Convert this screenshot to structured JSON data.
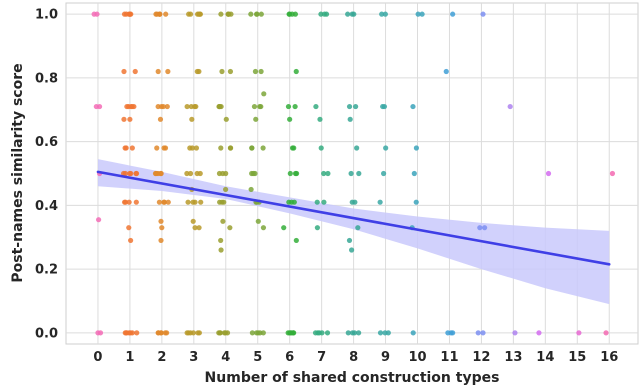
{
  "chart_data": {
    "type": "scatter",
    "title": "",
    "xlabel": "Number of shared construction types",
    "ylabel": "Post-names similarity score",
    "xlim": [
      -1,
      16.9
    ],
    "ylim": [
      -0.035,
      1.035
    ],
    "x_ticks": [
      "0",
      "1",
      "2",
      "3",
      "4",
      "5",
      "6",
      "7",
      "8",
      "9",
      "10",
      "11",
      "12",
      "13",
      "14",
      "15",
      "16"
    ],
    "y_ticks": [
      "0.0",
      "0.2",
      "0.4",
      "0.6",
      "0.8",
      "1.0"
    ],
    "grid": true,
    "legend": "none",
    "palette": [
      "#f36cb6",
      "#f07532",
      "#e1882b",
      "#b99a2a",
      "#999f2f",
      "#7ca63a",
      "#34ae3a",
      "#35ac80",
      "#37a795",
      "#39a8a5",
      "#3ba3bb",
      "#3f9fd6",
      "#7c8ff1",
      "#ae82f0",
      "#d46cf0",
      "#e868d2",
      "#f36ab2"
    ],
    "regression": {
      "color": "#3f3fe6",
      "band_color": "#c9c9fb",
      "line": [
        [
          0,
          0.505
        ],
        [
          16,
          0.215
        ]
      ],
      "band_upper": [
        [
          0,
          0.545
        ],
        [
          2,
          0.505
        ],
        [
          4,
          0.46
        ],
        [
          6,
          0.425
        ],
        [
          8,
          0.39
        ],
        [
          10,
          0.365
        ],
        [
          12,
          0.345
        ],
        [
          14,
          0.33
        ],
        [
          16,
          0.32
        ]
      ],
      "band_lower": [
        [
          0,
          0.46
        ],
        [
          2,
          0.445
        ],
        [
          4,
          0.42
        ],
        [
          6,
          0.375
        ],
        [
          8,
          0.325
        ],
        [
          10,
          0.265
        ],
        [
          12,
          0.2
        ],
        [
          14,
          0.14
        ],
        [
          16,
          0.09
        ]
      ]
    },
    "series": [
      {
        "x": 0,
        "points": [
          [
            -0.12,
            1.0
          ],
          [
            -0.03,
            1.0
          ],
          [
            0.05,
            0.71
          ],
          [
            -0.05,
            0.71
          ],
          [
            0.05,
            0.5
          ],
          [
            0.02,
            0.355
          ],
          [
            0.0,
            0.0
          ],
          [
            0.08,
            0.0
          ]
        ]
      },
      {
        "x": 1,
        "spread": 0.22,
        "ys": [
          1.0,
          1.0,
          1.0,
          1.0,
          1.0,
          1.0,
          0.82,
          0.82,
          0.71,
          0.71,
          0.71,
          0.71,
          0.71,
          0.67,
          0.67,
          0.58,
          0.58,
          0.58,
          0.5,
          0.5,
          0.5,
          0.5,
          0.5,
          0.5,
          0.41,
          0.41,
          0.41,
          0.41,
          0.33,
          0.29,
          0.0,
          0.0,
          0.0,
          0.0,
          0.0,
          0.0,
          0.0
        ]
      },
      {
        "x": 2,
        "spread": 0.22,
        "ys": [
          1.0,
          1.0,
          1.0,
          1.0,
          1.0,
          1.0,
          0.82,
          0.82,
          0.71,
          0.71,
          0.71,
          0.71,
          0.67,
          0.58,
          0.58,
          0.58,
          0.5,
          0.5,
          0.5,
          0.5,
          0.5,
          0.41,
          0.41,
          0.41,
          0.41,
          0.35,
          0.33,
          0.29,
          0.0,
          0.0,
          0.0,
          0.0,
          0.0,
          0.0
        ]
      },
      {
        "x": 3,
        "spread": 0.22,
        "ys": [
          1.0,
          1.0,
          1.0,
          1.0,
          1.0,
          1.0,
          0.82,
          0.82,
          0.71,
          0.71,
          0.71,
          0.71,
          0.67,
          0.58,
          0.58,
          0.58,
          0.5,
          0.5,
          0.5,
          0.5,
          0.45,
          0.41,
          0.41,
          0.41,
          0.41,
          0.35,
          0.33,
          0.33,
          0.0,
          0.0,
          0.0,
          0.0,
          0.0,
          0.0
        ]
      },
      {
        "x": 4,
        "spread": 0.22,
        "ys": [
          1.0,
          1.0,
          1.0,
          1.0,
          1.0,
          0.82,
          0.82,
          0.71,
          0.71,
          0.71,
          0.71,
          0.67,
          0.58,
          0.58,
          0.58,
          0.5,
          0.5,
          0.5,
          0.45,
          0.41,
          0.41,
          0.41,
          0.35,
          0.33,
          0.29,
          0.26,
          0.0,
          0.0,
          0.0,
          0.0,
          0.0,
          0.0
        ]
      },
      {
        "x": 5,
        "spread": 0.22,
        "ys": [
          1.0,
          1.0,
          1.0,
          1.0,
          0.82,
          0.82,
          0.75,
          0.71,
          0.71,
          0.71,
          0.67,
          0.58,
          0.58,
          0.58,
          0.5,
          0.5,
          0.5,
          0.45,
          0.41,
          0.41,
          0.41,
          0.35,
          0.33,
          0.0,
          0.0,
          0.0,
          0.0,
          0.0
        ]
      },
      {
        "x": 6,
        "spread": 0.22,
        "ys": [
          1.0,
          1.0,
          1.0,
          1.0,
          0.82,
          0.71,
          0.71,
          0.67,
          0.58,
          0.58,
          0.5,
          0.5,
          0.5,
          0.41,
          0.41,
          0.41,
          0.33,
          0.29,
          0.0,
          0.0,
          0.0,
          0.0,
          0.0,
          0.0
        ]
      },
      {
        "x": 7,
        "spread": 0.2,
        "ys": [
          1.0,
          1.0,
          1.0,
          0.71,
          0.67,
          0.58,
          0.5,
          0.5,
          0.41,
          0.41,
          0.33,
          0.0,
          0.0,
          0.0,
          0.0,
          0.0
        ]
      },
      {
        "x": 8,
        "spread": 0.2,
        "ys": [
          1.0,
          1.0,
          1.0,
          0.71,
          0.71,
          0.67,
          0.58,
          0.5,
          0.5,
          0.41,
          0.41,
          0.33,
          0.29,
          0.26,
          0.0,
          0.0,
          0.0,
          0.0
        ]
      },
      {
        "x": 9,
        "spread": 0.18,
        "ys": [
          1.0,
          1.0,
          0.71,
          0.71,
          0.58,
          0.5,
          0.41,
          0.0,
          0.0,
          0.0
        ]
      },
      {
        "x": 10,
        "spread": 0.18,
        "ys": [
          1.0,
          1.0,
          0.71,
          0.58,
          0.5,
          0.41,
          0.33,
          0.0
        ]
      },
      {
        "x": 11,
        "points": [
          [
            10.9,
            0.82
          ],
          [
            11.1,
            1.0
          ],
          [
            11.05,
            0.0
          ],
          [
            10.95,
            0.0
          ],
          [
            11.1,
            0.0
          ]
        ]
      },
      {
        "x": 12,
        "points": [
          [
            12.05,
            1.0
          ],
          [
            11.95,
            0.33
          ],
          [
            12.1,
            0.33
          ],
          [
            11.9,
            0.0
          ],
          [
            12.05,
            0.0
          ]
        ]
      },
      {
        "x": 13,
        "points": [
          [
            12.9,
            0.71
          ],
          [
            13.05,
            0.0
          ]
        ]
      },
      {
        "x": 14,
        "points": [
          [
            13.8,
            0.0
          ],
          [
            14.1,
            0.5
          ]
        ]
      },
      {
        "x": 15,
        "points": [
          [
            15.05,
            0.0
          ]
        ]
      },
      {
        "x": 16,
        "points": [
          [
            15.9,
            0.0
          ],
          [
            16.1,
            0.5
          ]
        ]
      }
    ]
  }
}
